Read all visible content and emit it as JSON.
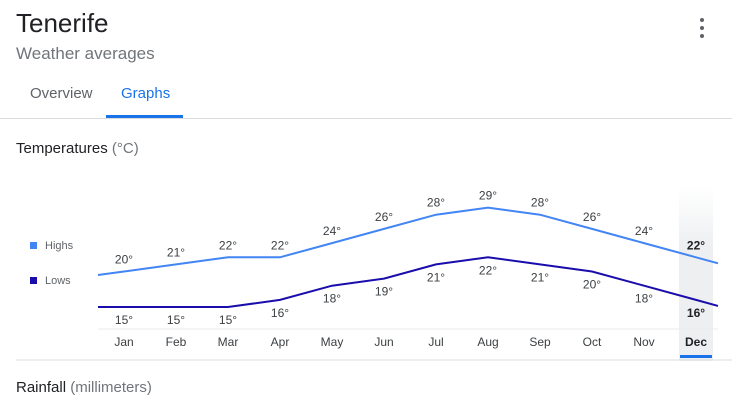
{
  "header": {
    "title": "Tenerife",
    "subtitle": "Weather averages",
    "menu_icon": "more-vert-icon"
  },
  "tabs": [
    {
      "label": "Overview",
      "selected": false
    },
    {
      "label": "Graphs",
      "selected": true
    }
  ],
  "temperatures": {
    "label": "Temperatures",
    "unit": "(°C)"
  },
  "rainfall": {
    "label": "Rainfall",
    "unit": "(millimeters)"
  },
  "legend": [
    {
      "label": "Highs",
      "color": "#4285f4"
    },
    {
      "label": "Lows",
      "color": "#1a0dab"
    }
  ],
  "colors": {
    "accent": "#1a73e8",
    "highs": "#4285f4",
    "lows": "#1a0dab"
  },
  "selected_month": "Dec",
  "chart_data": {
    "type": "line",
    "categories": [
      "Jan",
      "Feb",
      "Mar",
      "Apr",
      "May",
      "Jun",
      "Jul",
      "Aug",
      "Sep",
      "Oct",
      "Nov",
      "Dec"
    ],
    "series": [
      {
        "name": "Highs",
        "values": [
          20,
          21,
          22,
          22,
          24,
          26,
          28,
          29,
          28,
          26,
          24,
          22
        ],
        "labels": [
          "20°",
          "21°",
          "22°",
          "22°",
          "24°",
          "26°",
          "28°",
          "29°",
          "28°",
          "26°",
          "24°",
          "22°"
        ]
      },
      {
        "name": "Lows",
        "values": [
          15,
          15,
          15,
          16,
          18,
          19,
          21,
          22,
          21,
          20,
          18,
          16
        ],
        "labels": [
          "15°",
          "15°",
          "15°",
          "16°",
          "18°",
          "19°",
          "21°",
          "22°",
          "21°",
          "20°",
          "18°",
          "16°"
        ]
      }
    ]
  }
}
